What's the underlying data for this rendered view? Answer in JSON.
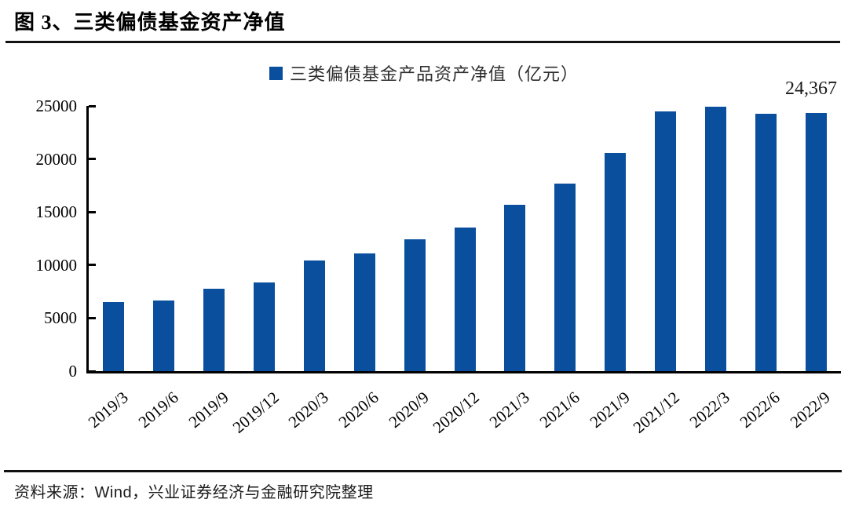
{
  "figure": {
    "title": "图 3、三类偏债基金资产净值",
    "source": "资料来源：Wind，兴业证券经济与金融研究院整理"
  },
  "chart_data": {
    "type": "bar",
    "title": "图 3、三类偏债基金资产净值",
    "legend_label": "三类偏债基金产品资产净值（亿元）",
    "legend_position": "top-center",
    "categories": [
      "2019/3",
      "2019/6",
      "2019/9",
      "2019/12",
      "2020/3",
      "2020/6",
      "2020/9",
      "2020/12",
      "2021/3",
      "2021/6",
      "2021/9",
      "2021/12",
      "2022/3",
      "2022/6",
      "2022/9"
    ],
    "values": [
      6500,
      6650,
      7750,
      8350,
      10450,
      11100,
      12400,
      13550,
      15700,
      17700,
      20550,
      24500,
      24900,
      24250,
      24367
    ],
    "unit": "亿元",
    "ylim": [
      0,
      25000
    ],
    "yticks": [
      0,
      5000,
      10000,
      15000,
      20000,
      25000
    ],
    "grid": false,
    "xlabel": "",
    "ylabel": "",
    "annotation": {
      "text": "24,367",
      "category": "2022/9"
    },
    "bar_color": "#094F9E",
    "axis_color": "#000000"
  }
}
